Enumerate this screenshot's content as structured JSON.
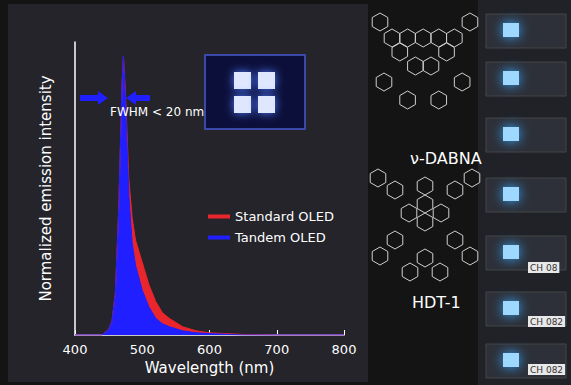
{
  "chart_data": {
    "type": "area",
    "x": [
      400,
      440,
      450,
      455,
      460,
      465,
      470,
      472,
      475,
      480,
      485,
      490,
      500,
      510,
      520,
      530,
      540,
      560,
      580,
      600,
      650,
      700,
      800
    ],
    "series": [
      {
        "name": "Standard OLED",
        "color": "#e8262b",
        "values": [
          0,
          0,
          0.02,
          0.05,
          0.15,
          0.45,
          0.9,
          1.0,
          0.87,
          0.56,
          0.42,
          0.34,
          0.26,
          0.18,
          0.12,
          0.08,
          0.06,
          0.03,
          0.015,
          0.008,
          0.002,
          0,
          0
        ]
      },
      {
        "name": "Tandem OLED",
        "color": "#1f1fff",
        "values": [
          0,
          0,
          0.02,
          0.05,
          0.15,
          0.45,
          0.9,
          1.0,
          0.85,
          0.5,
          0.33,
          0.25,
          0.16,
          0.1,
          0.06,
          0.04,
          0.03,
          0.015,
          0.008,
          0.005,
          0,
          0,
          0
        ]
      }
    ],
    "xlabel": "Wavelength (nm)",
    "ylabel": "Normalized emission intensity",
    "xlim": [
      400,
      800
    ],
    "xticks": [
      400,
      500,
      600,
      700,
      800
    ],
    "ylim": [
      0,
      1.05
    ],
    "tick_labels": "x",
    "grid": false,
    "legend": "right",
    "annotations": [
      "FWHM < 20 nm"
    ]
  },
  "molecules": [
    "ν-DABNA",
    "HDT-1"
  ],
  "photo_labels": [
    "CH 08",
    "CH 082",
    "CH 082"
  ]
}
